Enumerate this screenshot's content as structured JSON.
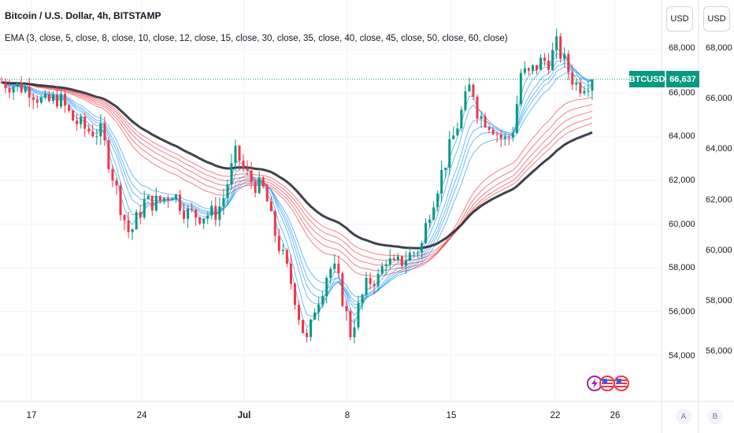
{
  "header": {
    "title": "Bitcoin / U.S. Dollar, 4h, BITSTAMP",
    "indicator": "EMA (3, close, 5, close, 8, close, 10, close, 12, close, 15, close, 30, close, 35, close, 40, close, 45, close, 50, close, 60, close)"
  },
  "currency_buttons": [
    "USD",
    "USD"
  ],
  "price_badge": {
    "symbol": "BTCUSD",
    "price": "66,637",
    "color": "#089981"
  },
  "y_axis_1": [
    "68,000",
    "66,000",
    "64,000",
    "62,000",
    "60,000",
    "58,000",
    "56,000",
    "54,000"
  ],
  "y_axis_2": [
    "68,000",
    "66,000",
    "64,000",
    "62,000",
    "60,000",
    "58,000",
    "56,000"
  ],
  "x_axis": [
    "17",
    "24",
    "Jul",
    "8",
    "15",
    "22",
    "26"
  ],
  "scale_buttons": [
    "A",
    "B"
  ],
  "event_icons": [
    "lightning-icon",
    "us-flag-icon",
    "us-flag-icon"
  ],
  "colors": {
    "up": "#089981",
    "down": "#f23645",
    "fast_ema": "#2196f3",
    "slow_ema": "#f23645",
    "ema60": "#2a2e39",
    "last_price_line": "#089981"
  },
  "chart_data": {
    "type": "candlestick",
    "title": "Bitcoin / U.S. Dollar, 4h, BITSTAMP",
    "last_price": 66637,
    "y_range": [
      53000,
      68800
    ],
    "x_ticks": [
      "17",
      "24",
      "Jul",
      "8",
      "15",
      "22",
      "26"
    ],
    "close_path": [
      [
        0,
        66500
      ],
      [
        4,
        66200
      ],
      [
        6,
        65500
      ],
      [
        8,
        65800
      ],
      [
        10,
        64800
      ],
      [
        12,
        64300
      ],
      [
        14,
        64200
      ],
      [
        15,
        63000
      ],
      [
        17,
        60500
      ],
      [
        18,
        59500
      ],
      [
        20,
        61000
      ],
      [
        22,
        61000
      ],
      [
        24,
        61500
      ],
      [
        26,
        60500
      ],
      [
        28,
        60400
      ],
      [
        30,
        60500
      ],
      [
        31,
        61000
      ],
      [
        32,
        62200
      ],
      [
        33,
        63300
      ],
      [
        34,
        62500
      ],
      [
        35,
        62000
      ],
      [
        37,
        61500
      ],
      [
        38,
        60000
      ],
      [
        39,
        59000
      ],
      [
        40,
        58000
      ],
      [
        41,
        57000
      ],
      [
        42,
        55500
      ],
      [
        43,
        54500
      ],
      [
        44,
        56200
      ],
      [
        45,
        57000
      ],
      [
        46,
        58000
      ],
      [
        47,
        57800
      ],
      [
        48,
        56500
      ],
      [
        49,
        55000
      ],
      [
        50,
        56000
      ],
      [
        51,
        57000
      ],
      [
        52,
        57500
      ],
      [
        53,
        57500
      ],
      [
        54,
        58500
      ],
      [
        55,
        58000
      ],
      [
        57,
        58500
      ],
      [
        59,
        59000
      ],
      [
        60,
        60500
      ],
      [
        61,
        61500
      ],
      [
        62,
        62500
      ],
      [
        63,
        63500
      ],
      [
        64,
        64500
      ],
      [
        65,
        65500
      ],
      [
        66,
        66500
      ],
      [
        67,
        65000
      ],
      [
        68,
        64800
      ],
      [
        69,
        64500
      ],
      [
        70,
        64000
      ],
      [
        71,
        63800
      ],
      [
        72,
        64500
      ],
      [
        73,
        67000
      ],
      [
        74,
        66800
      ],
      [
        75,
        67200
      ],
      [
        76,
        67500
      ],
      [
        77,
        67500
      ],
      [
        78,
        68200
      ],
      [
        79,
        67500
      ],
      [
        80,
        66800
      ],
      [
        81,
        66300
      ],
      [
        82,
        66500
      ],
      [
        83,
        66637
      ]
    ],
    "ema_lengths": [
      3,
      5,
      8,
      10,
      12,
      15,
      30,
      35,
      40,
      45,
      50,
      60
    ]
  }
}
